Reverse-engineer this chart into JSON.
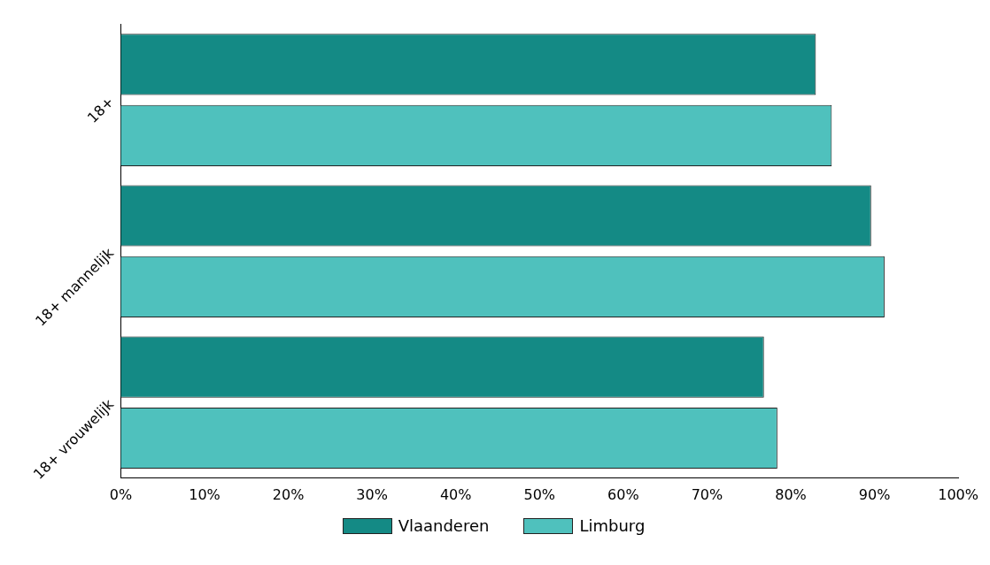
{
  "chart_data": {
    "type": "bar",
    "orientation": "horizontal",
    "categories": [
      "18+",
      "18+ mannelijk",
      "18+ vrouwelijk"
    ],
    "series": [
      {
        "name": "Vlaanderen",
        "color": "#148a85",
        "values": [
          83,
          89.6,
          76.8
        ]
      },
      {
        "name": "Limburg",
        "color": "#4fc1bd",
        "values": [
          84.9,
          91.2,
          78.4
        ]
      }
    ],
    "xlim": [
      0,
      100
    ],
    "xticks": [
      {
        "value": 0,
        "label": "0%"
      },
      {
        "value": 10,
        "label": "10%"
      },
      {
        "value": 20,
        "label": "20%"
      },
      {
        "value": 30,
        "label": "30%"
      },
      {
        "value": 40,
        "label": "40%"
      },
      {
        "value": 50,
        "label": "50%"
      },
      {
        "value": 60,
        "label": "60%"
      },
      {
        "value": 70,
        "label": "70%"
      },
      {
        "value": 80,
        "label": "80%"
      },
      {
        "value": 90,
        "label": "90%"
      },
      {
        "value": 100,
        "label": "100%"
      }
    ],
    "grid": false,
    "legend": "bottom"
  }
}
